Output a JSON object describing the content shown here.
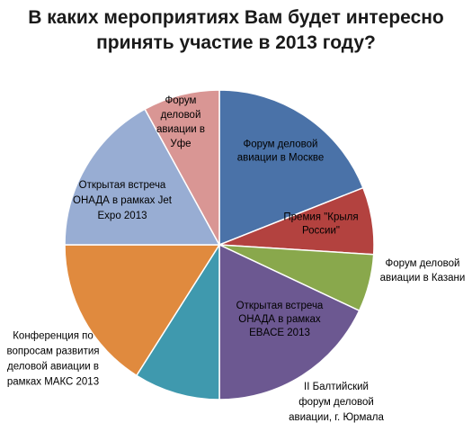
{
  "chart_data": {
    "type": "pie",
    "title": [
      "В каких мероприятиях Вам будет интересно",
      "принять участие в 2013 году?"
    ],
    "slices": [
      {
        "label": [
          "Форум деловой",
          "авиации в Москве"
        ],
        "value": 19,
        "color": "#4a72a8",
        "text_color": "#000000"
      },
      {
        "label": [
          "Премия \"Крыля",
          "России\""
        ],
        "value": 7,
        "color": "#b3423f",
        "text_color": "#000000"
      },
      {
        "label": [
          "Форум деловой",
          "авиации в Казани"
        ],
        "value": 6,
        "color": "#89a84c",
        "text_color": "#000000"
      },
      {
        "label": [
          "Открытая встреча",
          "ОНАДА в рамках",
          "EBACE 2013"
        ],
        "value": 18,
        "color": "#6c5891",
        "text_color": "#000000"
      },
      {
        "label": [
          "II Балтийский",
          "форум деловой",
          "авиации, г. Юрмала"
        ],
        "value": 9,
        "color": "#3f99ae",
        "text_color": "#000000"
      },
      {
        "label": [
          "Конференция  по",
          "вопросам развития",
          "деловой авиации в",
          "рамках МАКС 2013"
        ],
        "value": 16,
        "color": "#e08a3e",
        "text_color": "#000000"
      },
      {
        "label": [
          "Открытая встреча",
          "ОНАДА  в рамках Jet",
          "Expo 2013"
        ],
        "value": 17,
        "color": "#98add3",
        "text_color": "#000000"
      },
      {
        "label": [
          "Форум",
          "деловой",
          "авиации в",
          "Уфе"
        ],
        "value": 8,
        "color": "#d99694",
        "text_color": "#000000"
      }
    ]
  }
}
